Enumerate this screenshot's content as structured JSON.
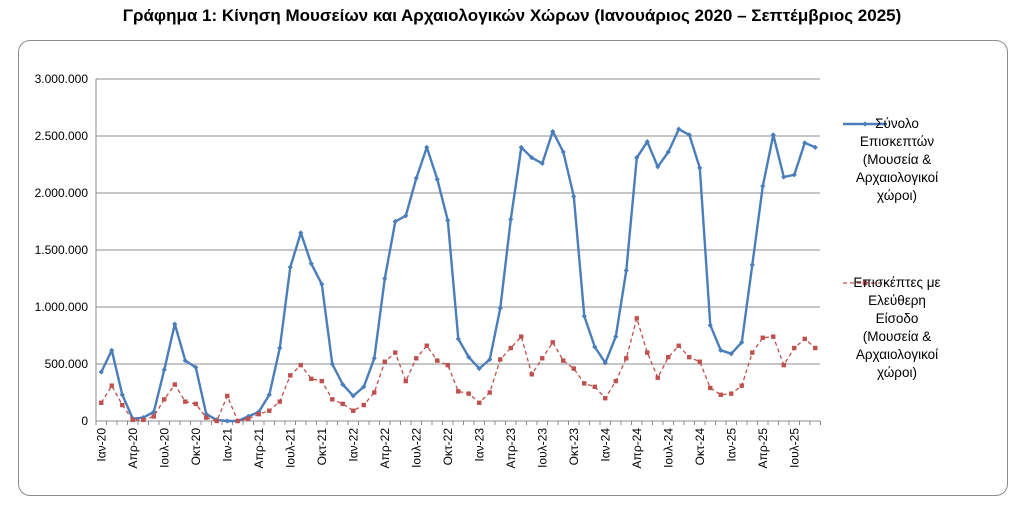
{
  "chart_data": {
    "type": "line",
    "title": "Γράφημα 1: Κίνηση Μουσείων και Αρχαιολογικών Χώρων (Ιανουάριος 2020 – Σεπτέμβριος 2025)",
    "xlabel": "",
    "ylabel": "",
    "ylim": [
      0,
      3000000
    ],
    "y_ticks": [
      "0",
      "500.000",
      "1.000.000",
      "1.500.000",
      "2.000.000",
      "2.500.000",
      "3.000.000"
    ],
    "x_tick_labels": [
      "Ιαν-20",
      "Απρ-20",
      "Ιουλ-20",
      "Οκτ-20",
      "Ιαν-21",
      "Απρ-21",
      "Ιουλ-21",
      "Οκτ-21",
      "Ιαν-22",
      "Απρ-22",
      "Ιουλ-22",
      "Οκτ-22",
      "Ιαν-23",
      "Απρ-23",
      "Ιουλ-23",
      "Οκτ-23",
      "Ιαν-24",
      "Απρ-24",
      "Ιουλ-24",
      "Οκτ-24",
      "Ιαν-25",
      "Απρ-25",
      "Ιουλ-25"
    ],
    "grid": true,
    "legend_position": "right",
    "series": [
      {
        "name": "Σύνολο Επισκεπτών (Μουσεία & Αρχαιολογικοί χώροι)",
        "legend_lines": [
          "Σύνολο",
          "Επισκεπτών",
          "(Μουσεία &",
          "Αρχαιολογικοί",
          "χώροι)"
        ],
        "color": "#4a7ebb",
        "style": "solid",
        "marker": "diamond",
        "values": [
          430000,
          620000,
          230000,
          20000,
          30000,
          80000,
          450000,
          850000,
          530000,
          470000,
          60000,
          10000,
          0,
          0,
          40000,
          80000,
          230000,
          640000,
          1350000,
          1650000,
          1380000,
          1200000,
          500000,
          320000,
          220000,
          300000,
          550000,
          1250000,
          1750000,
          1800000,
          2130000,
          2400000,
          2120000,
          1760000,
          720000,
          560000,
          460000,
          540000,
          990000,
          1770000,
          2400000,
          2310000,
          2260000,
          2540000,
          2360000,
          1970000,
          920000,
          650000,
          510000,
          740000,
          1320000,
          2310000,
          2450000,
          2230000,
          2360000,
          2560000,
          2510000,
          2220000,
          840000,
          620000,
          590000,
          690000,
          1370000,
          2060000,
          2510000,
          2140000,
          2160000,
          2440000,
          2400000
        ]
      },
      {
        "name": "Επισκέπτες με Ελεύθερη Είσοδο (Μουσεία & Αρχαιολογικοί χώροι)",
        "legend_lines": [
          "Επισκέπτες με",
          "Ελεύθερη",
          "Είσοδο",
          "(Μουσεία &",
          "Αρχαιολογικοί",
          "χώροι)"
        ],
        "color": "#c0504d",
        "style": "dashed",
        "marker": "square",
        "values": [
          160000,
          310000,
          140000,
          10000,
          10000,
          40000,
          190000,
          320000,
          170000,
          150000,
          30000,
          0,
          220000,
          0,
          20000,
          60000,
          90000,
          170000,
          400000,
          490000,
          370000,
          350000,
          190000,
          150000,
          90000,
          140000,
          250000,
          520000,
          600000,
          350000,
          550000,
          660000,
          530000,
          490000,
          260000,
          240000,
          160000,
          250000,
          540000,
          640000,
          740000,
          410000,
          550000,
          690000,
          530000,
          460000,
          330000,
          300000,
          200000,
          350000,
          550000,
          900000,
          600000,
          380000,
          560000,
          660000,
          560000,
          520000,
          290000,
          230000,
          240000,
          310000,
          600000,
          730000,
          740000,
          490000,
          640000,
          720000,
          640000
        ]
      }
    ]
  }
}
